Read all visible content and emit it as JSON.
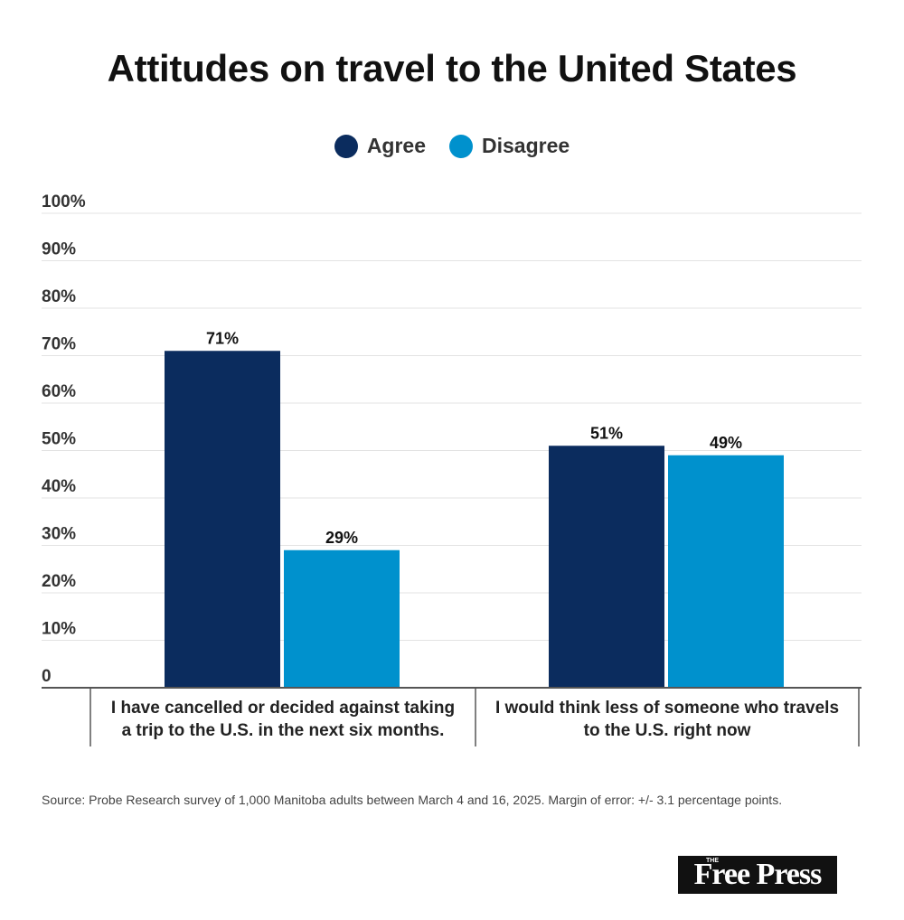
{
  "chart_data": {
    "type": "bar",
    "title": "Attitudes on travel to the United States",
    "categories": [
      [
        "I have cancelled or decided against taking",
        "a trip to the U.S. in the next six months."
      ],
      [
        "I would think less of someone who travels",
        "to the U.S. right now"
      ]
    ],
    "series": [
      {
        "name": "Agree",
        "color": "#0b2c5e",
        "values": [
          71,
          51
        ],
        "labels": [
          "71%",
          "51%"
        ]
      },
      {
        "name": "Disagree",
        "color": "#0091cd",
        "values": [
          29,
          49
        ],
        "labels": [
          "29%",
          "49%"
        ]
      }
    ],
    "ylim": [
      0,
      100
    ],
    "yticks": [
      0,
      10,
      20,
      30,
      40,
      50,
      60,
      70,
      80,
      90,
      100
    ],
    "ytick_labels": [
      "0",
      "10%",
      "20%",
      "30%",
      "40%",
      "50%",
      "60%",
      "70%",
      "80%",
      "90%",
      "100%"
    ],
    "grid": true,
    "legend": "top-center"
  },
  "source": "Source: Probe Research survey of 1,000 Manitoba adults between March 4 and 16, 2025. Margin of error: +/- 3.1 percentage points.",
  "logo": {
    "small": "THE",
    "text": "Free Press"
  }
}
